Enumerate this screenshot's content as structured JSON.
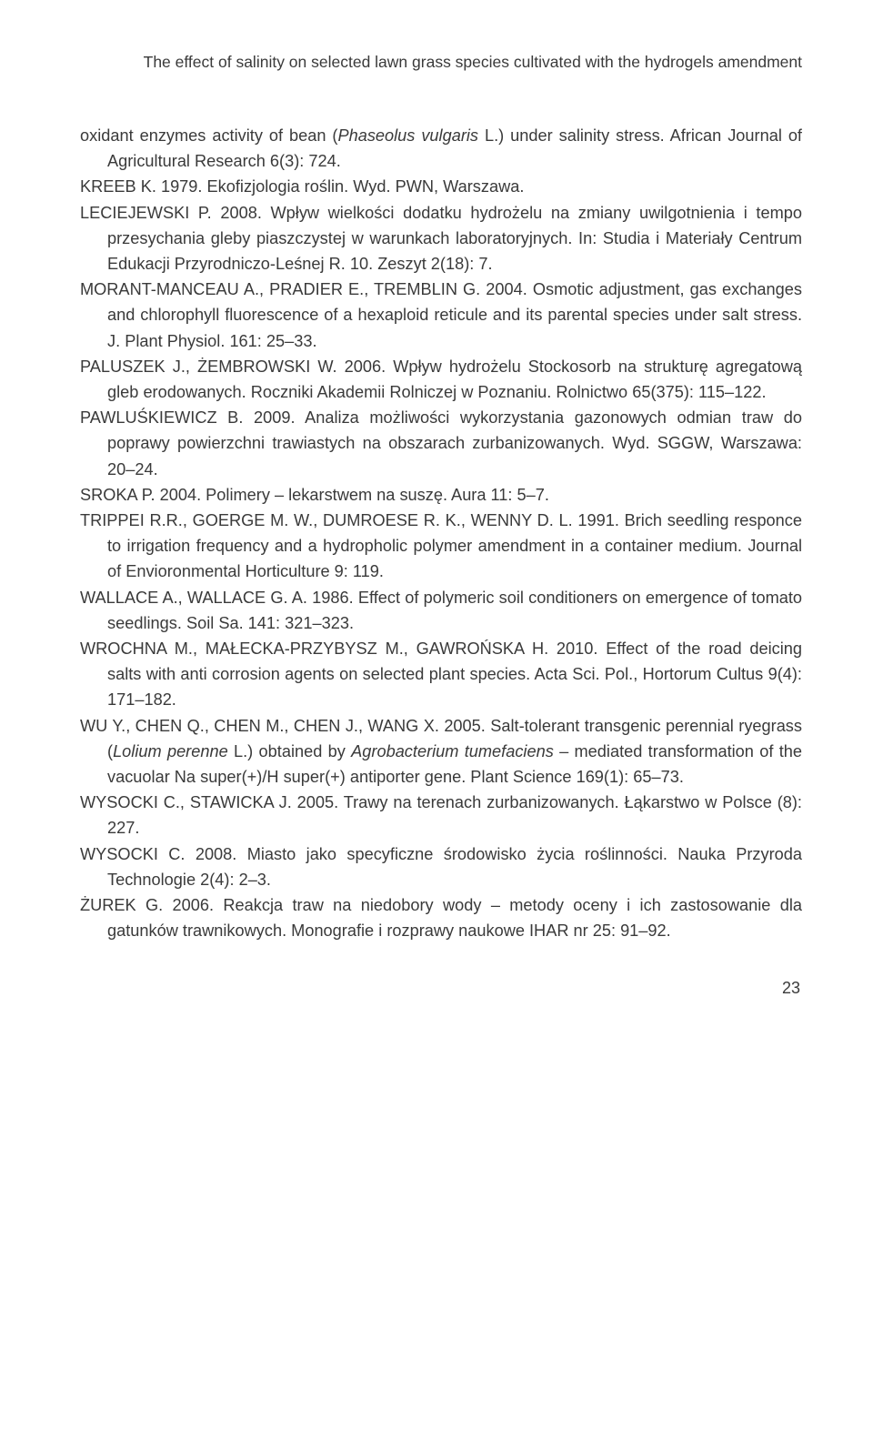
{
  "header": "The effect of salinity on selected lawn grass species cultivated with the hydrogels amendment",
  "page_number": "23",
  "references": [
    {
      "pre": "oxidant enzymes activity of bean (",
      "it1": "Phaseolus vulgaris",
      "post": " L.) under salinity stress. African Journal of Agricultural Research 6(3): 724."
    },
    {
      "pre": "KREEB K. 1979. Ekofizjologia roślin. Wyd. PWN, Warszawa."
    },
    {
      "pre": "LECIEJEWSKI P. 2008. Wpływ wielkości dodatku hydrożelu na zmiany uwilgotnienia i tempo przesychania gleby piaszczystej w warunkach laboratoryjnych. In: Studia i Materiały Centrum Edukacji Przyrodniczo-Leśnej R. 10. Zeszyt 2(18): 7."
    },
    {
      "pre": "MORANT-MANCEAU A., PRADIER E., TREMBLIN G. 2004. Osmotic adjustment, gas exchanges and chlorophyll fluorescence of a hexaploid reticule and its parental species under salt stress. J. Plant Physiol. 161: 25–33."
    },
    {
      "pre": "PALUSZEK J., ŻEMBROWSKI W. 2006. Wpływ hydrożelu Stockosorb na strukturę agregatową gleb erodowanych. Roczniki Akademii Rolniczej w Poznaniu. Rolnictwo 65(375): 115–122."
    },
    {
      "pre": "PAWLUŚKIEWICZ B. 2009. Analiza możliwości wykorzystania gazonowych odmian traw do poprawy powierzchni trawiastych na obszarach zurbanizowanych. Wyd. SGGW, Warszawa: 20–24."
    },
    {
      "pre": "SROKA P. 2004. Polimery – lekarstwem na suszę. Aura 11: 5–7."
    },
    {
      "pre": "TRIPPEI R.R., GOERGE M. W., DUMROESE R. K., WENNY D. L. 1991. Brich seedling responce to irrigation frequency and a hydropholic polymer amendment in a container medium. Journal of Envioronmental Horticulture 9: 119."
    },
    {
      "pre": "WALLACE A., WALLACE G. A. 1986. Effect of polymeric soil conditioners on emergence of tomato seedlings. Soil Sa. 141: 321–323."
    },
    {
      "pre": "WROCHNA M., MAŁECKA-PRZYBYSZ M., GAWROŃSKA H. 2010. Effect of the road deicing salts with anti corrosion agents on selected plant species. Acta Sci. Pol., Hortorum Cultus 9(4): 171–182."
    },
    {
      "pre": "WU Y., CHEN Q., CHEN M., CHEN J., WANG X. 2005. Salt-tolerant transgenic perennial ryegrass (",
      "it1": "Lolium perenne",
      "mid": " L.) obtained by ",
      "it2": "Agrobacterium tumefaciens",
      "post": " – mediated transformation of the vacuolar Na super(+)/H super(+) antiporter gene. Plant Science 169(1): 65–73."
    },
    {
      "pre": "WYSOCKI C., STAWICKA J. 2005. Trawy na terenach zurbanizowanych. Łąkarstwo w Polsce (8): 227."
    },
    {
      "pre": "WYSOCKI C. 2008. Miasto jako specyficzne środowisko życia roślinności. Nauka Przyroda Technologie 2(4): 2–3."
    },
    {
      "pre": "ŻUREK G. 2006. Reakcja traw na niedobory wody – metody oceny i ich zastosowanie dla gatunków trawnikowych. Monografie i rozprawy naukowe IHAR nr 25: 91–92."
    }
  ]
}
